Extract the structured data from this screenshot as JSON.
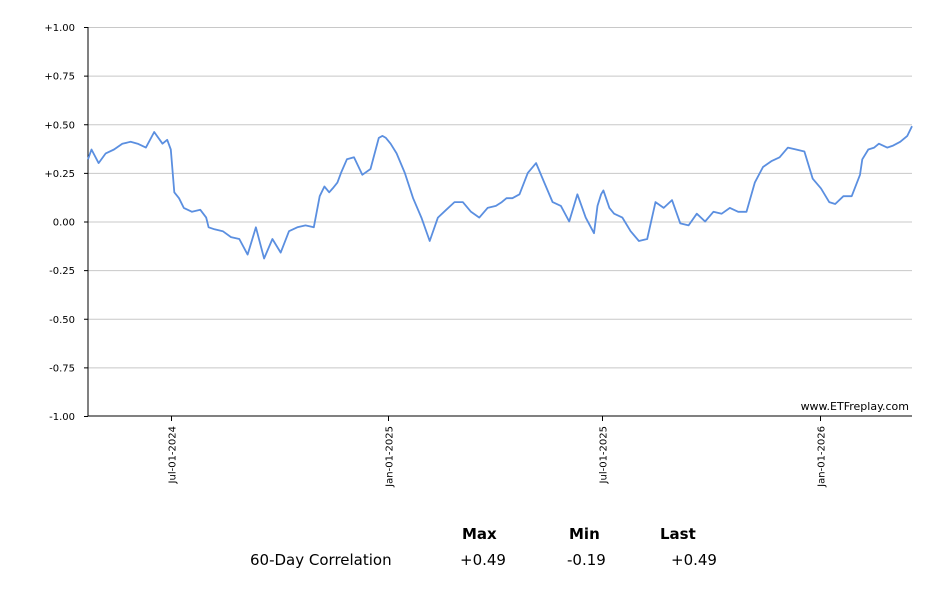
{
  "chart_data": {
    "type": "line",
    "title": "",
    "xlabel": "",
    "ylabel": "",
    "ylim": [
      -1.0,
      1.0
    ],
    "y_ticks": [
      "+1.00",
      "+0.75",
      "+0.50",
      "+0.25",
      "0.00",
      "-0.25",
      "-0.50",
      "-0.75",
      "-1.00"
    ],
    "y_tick_values": [
      1.0,
      0.75,
      0.5,
      0.25,
      0.0,
      -0.25,
      -0.5,
      -0.75,
      -1.0
    ],
    "x_range": [
      "2024-04-22",
      "2026-03-20"
    ],
    "x_ticks": [
      {
        "label": "Jul-01-2024",
        "date": "2024-07-01"
      },
      {
        "label": "Jan-01-2025",
        "date": "2025-01-01"
      },
      {
        "label": "Jul-01-2025",
        "date": "2025-07-01"
      },
      {
        "label": "Jan-01-2026",
        "date": "2026-01-01"
      }
    ],
    "grid": true,
    "line_color": "#5b8fe0",
    "series": [
      {
        "x": [
          "2024-04-22",
          "2024-04-25",
          "2024-05-01",
          "2024-05-07",
          "2024-05-14",
          "2024-05-21",
          "2024-05-28",
          "2024-06-03",
          "2024-06-10",
          "2024-06-17",
          "2024-06-24",
          "2024-06-28",
          "2024-07-01",
          "2024-07-04",
          "2024-07-08",
          "2024-07-12",
          "2024-07-19",
          "2024-07-26",
          "2024-07-31",
          "2024-08-02",
          "2024-08-07",
          "2024-08-14",
          "2024-08-21",
          "2024-08-28",
          "2024-09-04",
          "2024-09-11",
          "2024-09-18",
          "2024-09-25",
          "2024-10-02",
          "2024-10-09",
          "2024-10-16",
          "2024-10-23",
          "2024-10-30",
          "2024-11-04",
          "2024-11-08",
          "2024-11-12",
          "2024-11-15",
          "2024-11-19",
          "2024-11-22",
          "2024-11-27",
          "2024-12-03",
          "2024-12-10",
          "2024-12-17",
          "2024-12-24",
          "2024-12-27",
          "2024-12-30",
          "2025-01-03",
          "2025-01-08",
          "2025-01-15",
          "2025-01-22",
          "2025-01-29",
          "2025-02-05",
          "2025-02-12",
          "2025-02-19",
          "2025-02-26",
          "2025-03-05",
          "2025-03-12",
          "2025-03-19",
          "2025-03-26",
          "2025-04-02",
          "2025-04-07",
          "2025-04-11",
          "2025-04-16",
          "2025-04-22",
          "2025-04-29",
          "2025-05-06",
          "2025-05-13",
          "2025-05-20",
          "2025-05-27",
          "2025-06-03",
          "2025-06-10",
          "2025-06-17",
          "2025-06-24",
          "2025-06-27",
          "2025-06-30",
          "2025-07-02",
          "2025-07-07",
          "2025-07-11",
          "2025-07-18",
          "2025-07-25",
          "2025-08-01",
          "2025-08-08",
          "2025-08-15",
          "2025-08-22",
          "2025-08-29",
          "2025-09-05",
          "2025-09-12",
          "2025-09-19",
          "2025-09-26",
          "2025-10-03",
          "2025-10-10",
          "2025-10-17",
          "2025-10-24",
          "2025-10-31",
          "2025-11-07",
          "2025-11-14",
          "2025-11-21",
          "2025-11-28",
          "2025-12-05",
          "2025-12-12",
          "2025-12-19",
          "2025-12-26",
          "2026-01-02",
          "2026-01-09",
          "2026-01-14",
          "2026-01-21",
          "2026-01-28",
          "2026-02-04",
          "2026-02-06",
          "2026-02-11",
          "2026-02-16",
          "2026-02-20",
          "2026-02-27",
          "2026-03-04",
          "2026-03-10",
          "2026-03-16",
          "2026-03-20"
        ],
        "values": [
          0.32,
          0.37,
          0.3,
          0.35,
          0.37,
          0.4,
          0.41,
          0.4,
          0.38,
          0.46,
          0.4,
          0.42,
          0.37,
          0.15,
          0.12,
          0.07,
          0.05,
          0.06,
          0.02,
          -0.03,
          -0.04,
          -0.05,
          -0.08,
          -0.09,
          -0.17,
          -0.03,
          -0.19,
          -0.09,
          -0.16,
          -0.05,
          -0.03,
          -0.02,
          -0.03,
          0.13,
          0.18,
          0.15,
          0.17,
          0.2,
          0.25,
          0.32,
          0.33,
          0.24,
          0.27,
          0.43,
          0.44,
          0.43,
          0.4,
          0.35,
          0.25,
          0.12,
          0.02,
          -0.1,
          0.02,
          0.06,
          0.1,
          0.1,
          0.05,
          0.02,
          0.07,
          0.08,
          0.1,
          0.12,
          0.12,
          0.14,
          0.25,
          0.3,
          0.2,
          0.1,
          0.08,
          0.0,
          0.14,
          0.02,
          -0.06,
          0.08,
          0.14,
          0.16,
          0.07,
          0.04,
          0.02,
          -0.05,
          -0.1,
          -0.09,
          0.1,
          0.07,
          0.11,
          -0.01,
          -0.02,
          0.04,
          0.0,
          0.05,
          0.04,
          0.07,
          0.05,
          0.05,
          0.2,
          0.28,
          0.31,
          0.33,
          0.38,
          0.37,
          0.36,
          0.22,
          0.17,
          0.1,
          0.09,
          0.13,
          0.13,
          0.24,
          0.32,
          0.37,
          0.38,
          0.4,
          0.38,
          0.39,
          0.41,
          0.44,
          0.49
        ]
      }
    ]
  },
  "watermark": "www.ETFreplay.com",
  "stats": {
    "headers": [
      "Max",
      "Min",
      "Last"
    ],
    "row_label": "60-Day Correlation",
    "values": [
      "+0.49",
      "-0.19",
      "+0.49"
    ]
  }
}
